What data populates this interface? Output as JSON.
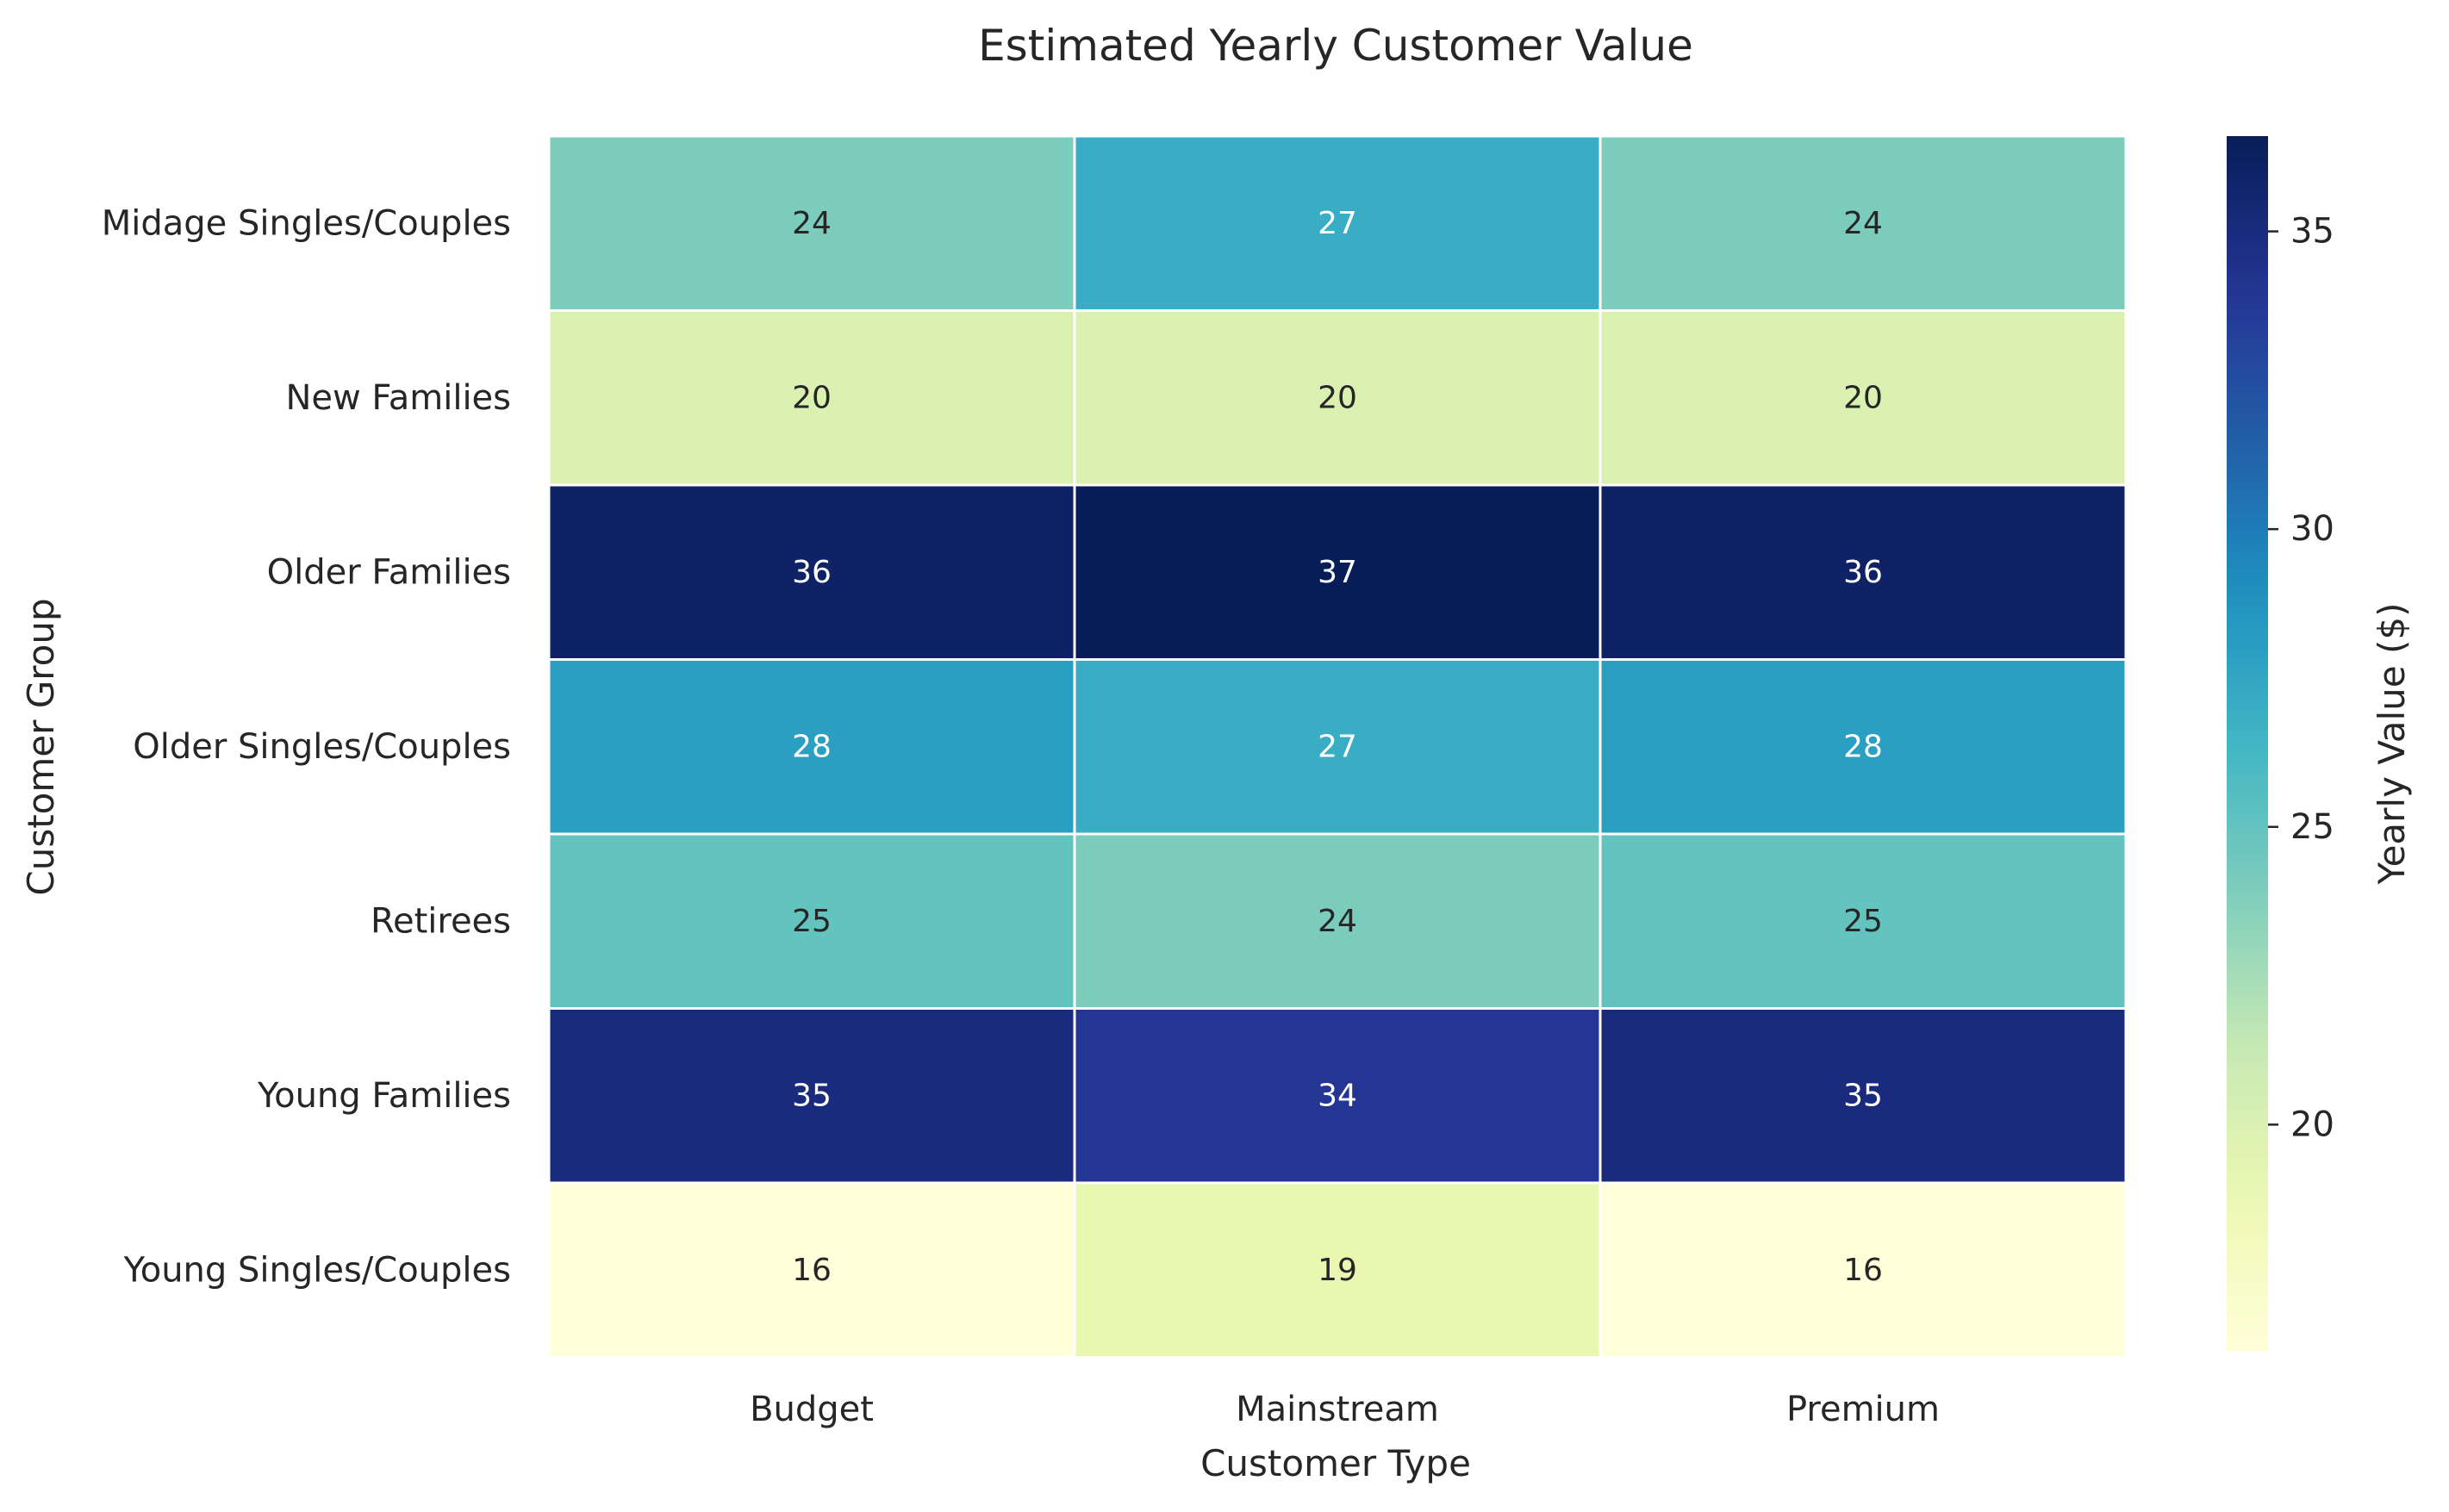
{
  "chart_data": {
    "type": "heatmap",
    "title": "Estimated Yearly Customer Value",
    "xlabel": "Customer Type",
    "ylabel": "Customer Group",
    "x_categories": [
      "Budget",
      "Mainstream",
      "Premium"
    ],
    "y_categories": [
      "Midage Singles/Couples",
      "New Families",
      "Older Families",
      "Older Singles/Couples",
      "Retirees",
      "Young Families",
      "Young Singles/Couples"
    ],
    "values": [
      [
        24,
        27,
        24
      ],
      [
        20,
        20,
        20
      ],
      [
        36,
        37,
        36
      ],
      [
        28,
        27,
        28
      ],
      [
        25,
        24,
        25
      ],
      [
        35,
        34,
        35
      ],
      [
        16,
        19,
        16
      ]
    ],
    "value_labels": [
      [
        "24",
        "27",
        "24"
      ],
      [
        "20",
        "20",
        "20"
      ],
      [
        "36",
        "37",
        "36"
      ],
      [
        "28",
        "27",
        "28"
      ],
      [
        "25",
        "24",
        "25"
      ],
      [
        "35",
        "34",
        "35"
      ],
      [
        "16",
        "19",
        "16"
      ]
    ],
    "colormap": "YlGnBu",
    "colorbar": {
      "label": "Yearly Value ($)",
      "range": [
        16.2,
        36.6
      ],
      "ticks": [
        20,
        25,
        30,
        35
      ]
    },
    "grid": false
  }
}
